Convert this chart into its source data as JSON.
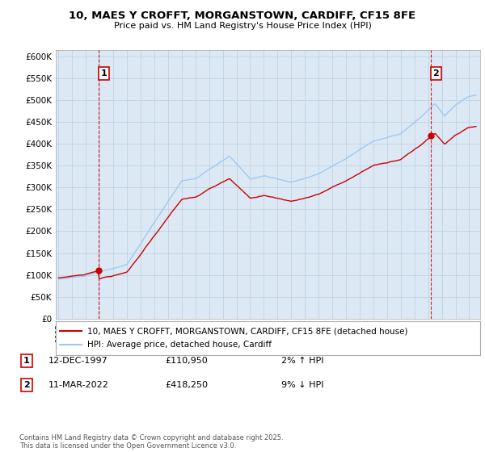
{
  "title_line1": "10, MAES Y CROFFT, MORGANSTOWN, CARDIFF, CF15 8FE",
  "title_line2": "Price paid vs. HM Land Registry's House Price Index (HPI)",
  "ylabel_ticks": [
    "£0",
    "£50K",
    "£100K",
    "£150K",
    "£200K",
    "£250K",
    "£300K",
    "£350K",
    "£400K",
    "£450K",
    "£500K",
    "£550K",
    "£600K"
  ],
  "ytick_values": [
    0,
    50000,
    100000,
    150000,
    200000,
    250000,
    300000,
    350000,
    400000,
    450000,
    500000,
    550000,
    600000
  ],
  "ylim": [
    0,
    615000
  ],
  "xlim_start": 1994.8,
  "xlim_end": 2025.8,
  "sale1_date": 1997.95,
  "sale1_price": 110950,
  "sale1_label": "1",
  "sale2_date": 2022.19,
  "sale2_price": 418250,
  "sale2_label": "2",
  "hpi_color": "#a0c8f0",
  "sale_color": "#cc0000",
  "dashed_line_color": "#cc0000",
  "plot_bg_color": "#dce9f5",
  "legend_entry1": "10, MAES Y CROFFT, MORGANSTOWN, CARDIFF, CF15 8FE (detached house)",
  "legend_entry2": "HPI: Average price, detached house, Cardiff",
  "annotation1_date": "12-DEC-1997",
  "annotation1_price": "£110,950",
  "annotation1_pct": "2% ↑ HPI",
  "annotation2_date": "11-MAR-2022",
  "annotation2_price": "£418,250",
  "annotation2_pct": "9% ↓ HPI",
  "footer": "Contains HM Land Registry data © Crown copyright and database right 2025.\nThis data is licensed under the Open Government Licence v3.0.",
  "background_color": "#ffffff",
  "grid_color": "#b8cfe0"
}
